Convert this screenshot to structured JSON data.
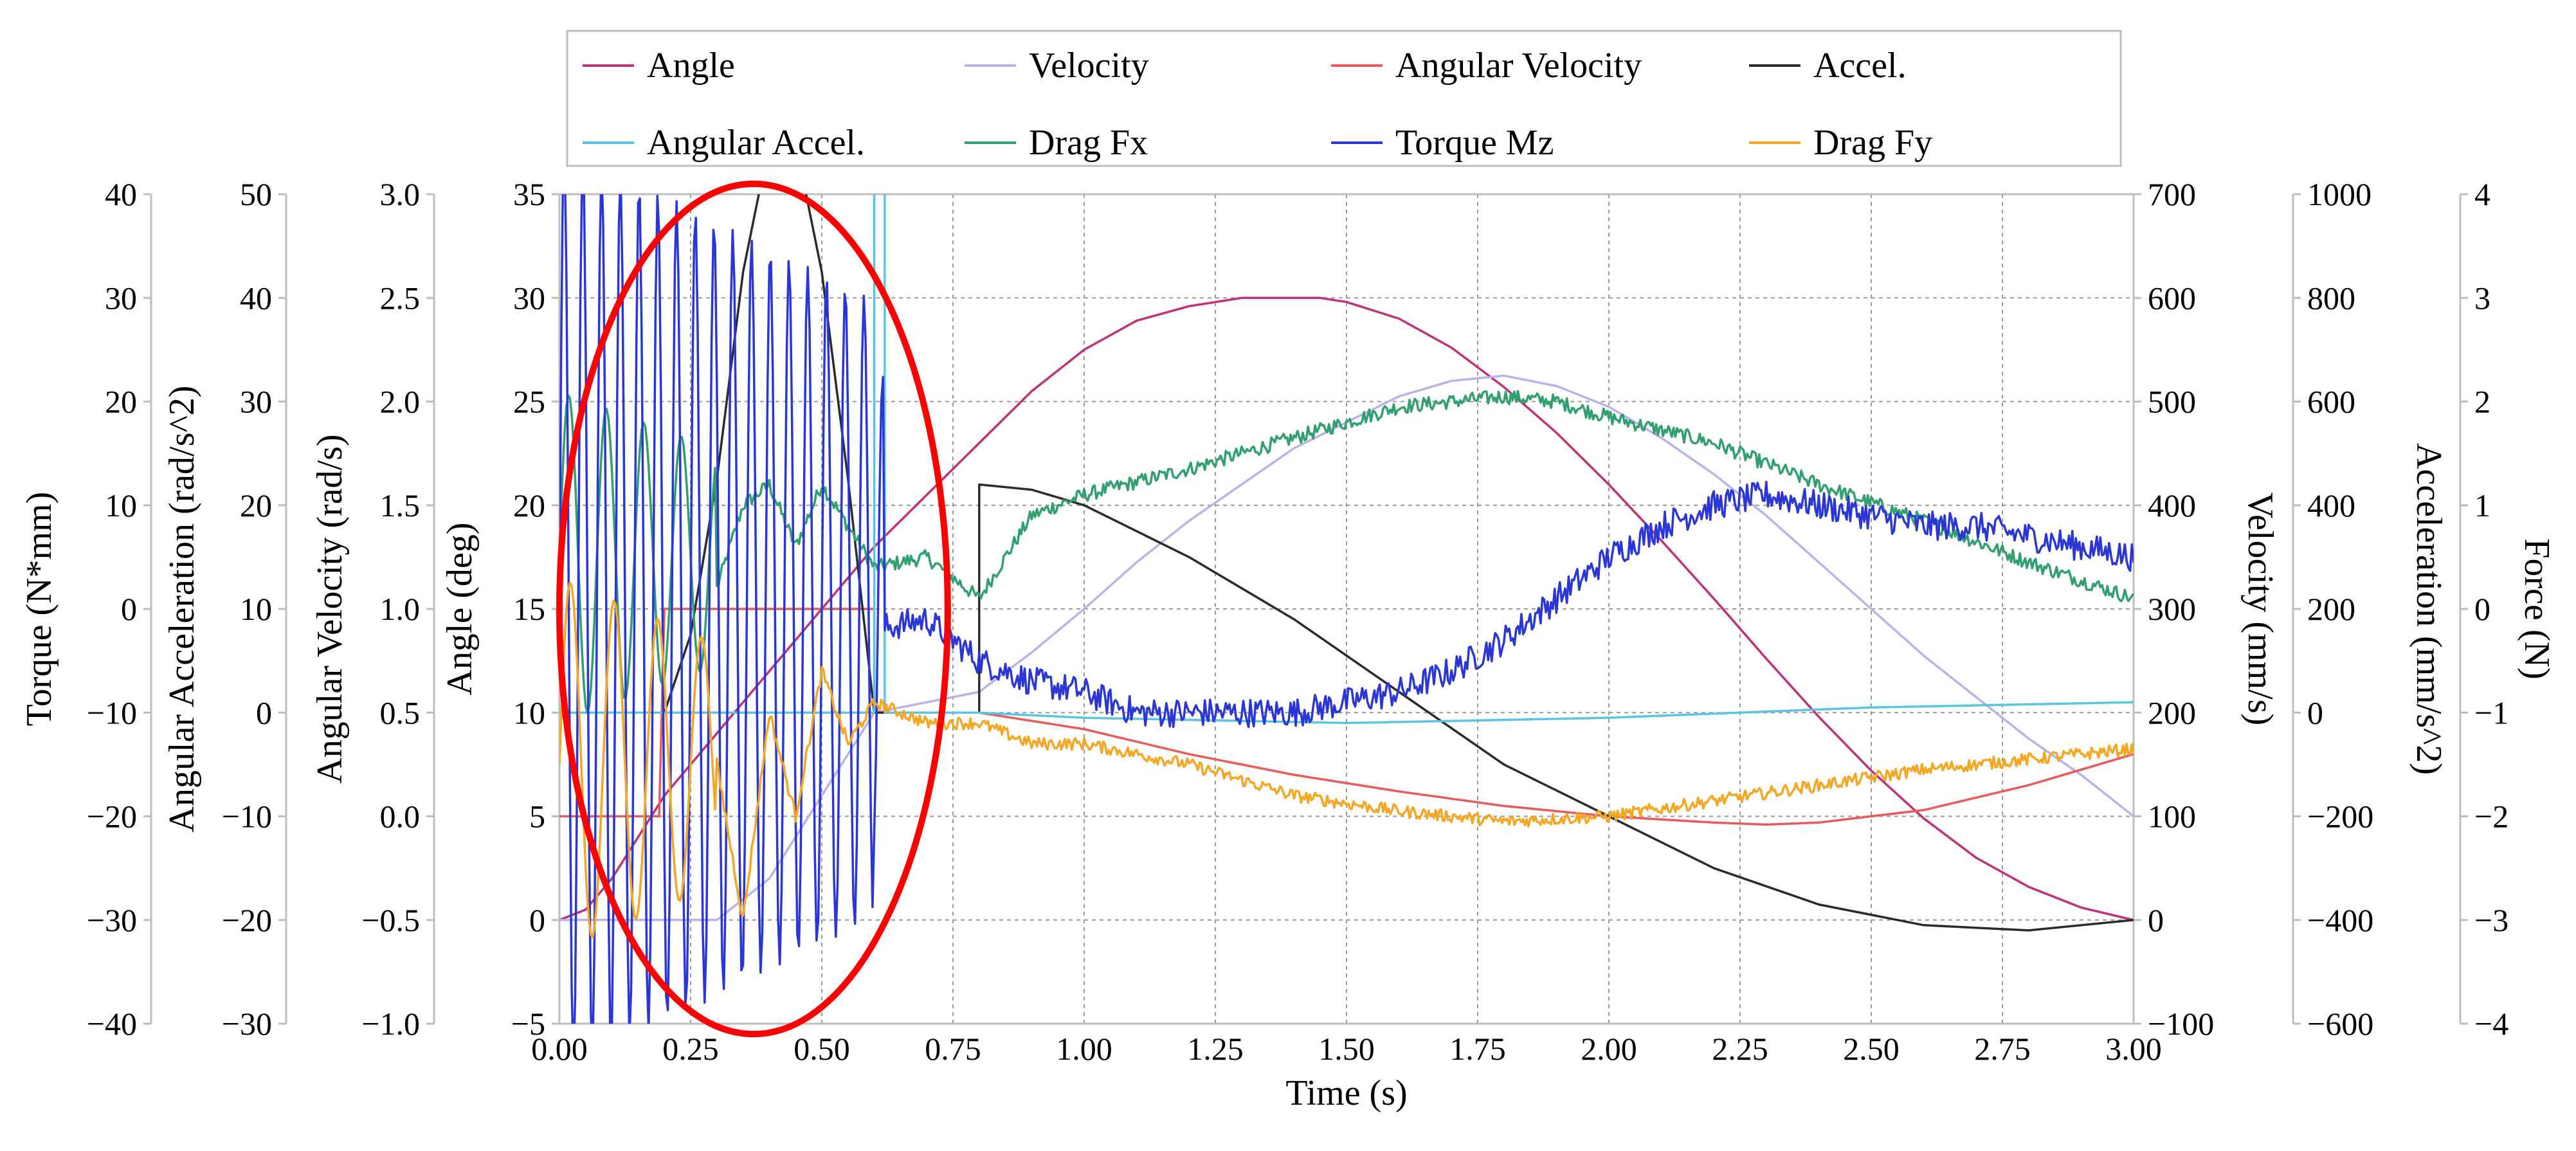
{
  "chart_data": {
    "type": "line",
    "xlabel": "Time (s)",
    "xlim": [
      0,
      3.0
    ],
    "xticks": [
      "0.00",
      "0.25",
      "0.50",
      "0.75",
      "1.00",
      "1.25",
      "1.50",
      "1.75",
      "2.00",
      "2.25",
      "2.50",
      "2.75",
      "3.00"
    ],
    "axes": {
      "torque": {
        "label": "Torque (N*mm)",
        "lim": [
          -40,
          40
        ],
        "ticks": [
          "40",
          "30",
          "20",
          "10",
          "0",
          "−10",
          "−20",
          "−30",
          "−40"
        ]
      },
      "angular_acceleration": {
        "label": "Angular Acceleration (rad/s^2)",
        "lim": [
          -30,
          50
        ],
        "ticks": [
          "50",
          "40",
          "30",
          "20",
          "10",
          "0",
          "−10",
          "−20",
          "−30"
        ]
      },
      "angular_velocity": {
        "label": "Angular Velocity (rad/s)",
        "lim": [
          -1.0,
          3.0
        ],
        "ticks": [
          "3.0",
          "2.5",
          "2.0",
          "1.5",
          "1.0",
          "0.5",
          "0.0",
          "−0.5",
          "−1.0"
        ]
      },
      "angle": {
        "label": "Angle (deg)",
        "lim": [
          -5,
          35
        ],
        "ticks": [
          "35",
          "30",
          "25",
          "20",
          "15",
          "10",
          "5",
          "0",
          "−5"
        ]
      },
      "velocity": {
        "label": "Velocity (mm/s)",
        "lim": [
          -100,
          700
        ],
        "ticks": [
          "700",
          "600",
          "500",
          "400",
          "300",
          "200",
          "100",
          "0",
          "−100"
        ]
      },
      "acceleration": {
        "label": "Acceleration (mm/s^2)",
        "lim": [
          -600,
          1000
        ],
        "ticks": [
          "1000",
          "800",
          "600",
          "400",
          "200",
          "0",
          "−200",
          "−400",
          "−600"
        ]
      },
      "force": {
        "label": "Force (N)",
        "lim": [
          -4,
          4
        ],
        "ticks": [
          "4",
          "3",
          "2",
          "1",
          "0",
          "−1",
          "−2",
          "−3",
          "−4"
        ]
      }
    },
    "legend": [
      "Angle",
      "Velocity",
      "Angular Velocity",
      "Accel.",
      "Angular Accel.",
      "Drag Fx",
      "Torque Mz",
      "Drag Fy"
    ],
    "series": [
      {
        "name": "Angle",
        "axis": "angle",
        "color": "#c2307a",
        "x": [
          0,
          0.05,
          0.1,
          0.15,
          0.2,
          0.3,
          0.4,
          0.5,
          0.6,
          0.7,
          0.8,
          0.9,
          1.0,
          1.1,
          1.2,
          1.3,
          1.4,
          1.45,
          1.5,
          1.6,
          1.7,
          1.8,
          1.9,
          2.0,
          2.1,
          2.2,
          2.3,
          2.4,
          2.5,
          2.6,
          2.7,
          2.8,
          2.9,
          3.0
        ],
        "y": [
          0,
          0.5,
          2.0,
          4.0,
          6.0,
          9.0,
          12.0,
          15.0,
          18.0,
          20.5,
          23.0,
          25.5,
          27.5,
          28.9,
          29.6,
          30.0,
          30.0,
          30.0,
          29.8,
          29.0,
          27.6,
          25.7,
          23.5,
          21.0,
          18.3,
          15.5,
          12.6,
          9.8,
          7.2,
          4.9,
          3.0,
          1.6,
          0.6,
          0.0
        ]
      },
      {
        "name": "Velocity",
        "axis": "velocity",
        "color": "#b8b2ee",
        "x": [
          0,
          0.3,
          0.4,
          0.5,
          0.6,
          0.8,
          0.9,
          1.0,
          1.1,
          1.2,
          1.3,
          1.4,
          1.5,
          1.6,
          1.7,
          1.8,
          1.9,
          2.0,
          2.1,
          2.2,
          2.3,
          2.4,
          2.5,
          2.6,
          2.7,
          2.8,
          2.9,
          3.0
        ],
        "y": [
          0,
          0,
          40,
          120,
          200,
          220,
          258,
          300,
          345,
          385,
          420,
          455,
          480,
          505,
          520,
          525,
          515,
          495,
          465,
          430,
          390,
          345,
          300,
          255,
          215,
          175,
          140,
          100
        ]
      },
      {
        "name": "Angular Velocity",
        "axis": "angular_velocity",
        "color": "#ea5a5a",
        "x": [
          0,
          0.19,
          0.2,
          0.6,
          0.6,
          0.8,
          1.0,
          1.2,
          1.4,
          1.6,
          1.8,
          2.0,
          2.2,
          2.3,
          2.4,
          2.6,
          2.8,
          3.0
        ],
        "y": [
          0,
          0,
          1.0,
          1.0,
          0.5,
          0.5,
          0.42,
          0.3,
          0.2,
          0.12,
          0.05,
          0.0,
          -0.03,
          -0.04,
          -0.03,
          0.03,
          0.15,
          0.3
        ]
      },
      {
        "name": "Accel.",
        "axis": "acceleration",
        "color": "#2b2b2b",
        "x": [
          0,
          0.2,
          0.25,
          0.3,
          0.35,
          0.4,
          0.45,
          0.5,
          0.55,
          0.6,
          0.6,
          0.8,
          0.8,
          0.9,
          1.0,
          1.2,
          1.4,
          1.6,
          1.8,
          2.0,
          2.2,
          2.4,
          2.6,
          2.8,
          3.0
        ],
        "y": [
          0,
          0,
          150,
          450,
          850,
          1100,
          1100,
          850,
          450,
          0,
          0,
          0,
          440,
          430,
          400,
          300,
          180,
          40,
          -100,
          -200,
          -300,
          -370,
          -410,
          -420,
          -400
        ]
      },
      {
        "name": "Angular Accel.",
        "axis": "angular_acceleration",
        "color": "#5bc3e6",
        "x": [
          0,
          0.6,
          0.6,
          0.62,
          0.62,
          0.8,
          1.0,
          1.5,
          2.0,
          2.5,
          3.0
        ],
        "y": [
          0,
          0,
          60,
          60,
          0,
          0,
          -0.5,
          -1.0,
          -0.5,
          0.5,
          1.0
        ]
      },
      {
        "name": "Drag Fx",
        "axis": "force",
        "color": "#30a070",
        "x": [
          0.3,
          0.35,
          0.4,
          0.45,
          0.5,
          0.55,
          0.6,
          0.7,
          0.8,
          0.9,
          1.0,
          1.2,
          1.4,
          1.6,
          1.8,
          1.9,
          2.0,
          2.2,
          2.4,
          2.6,
          2.8,
          3.0
        ],
        "y": [
          0.2,
          1.0,
          1.2,
          0.6,
          1.2,
          0.8,
          0.4,
          0.5,
          0.1,
          0.9,
          1.1,
          1.35,
          1.65,
          1.95,
          2.05,
          2.0,
          1.85,
          1.6,
          1.2,
          0.85,
          0.45,
          0.1
        ]
      },
      {
        "name": "Torque Mz",
        "axis": "torque",
        "color": "#2a36d6",
        "x": [
          0.6,
          0.7,
          0.8,
          0.9,
          1.0,
          1.1,
          1.2,
          1.3,
          1.4,
          1.5,
          1.6,
          1.7,
          1.8,
          1.9,
          2.0,
          2.1,
          2.2,
          2.3,
          2.4,
          2.5,
          2.6,
          2.7,
          2.8,
          2.9,
          3.0
        ],
        "y": [
          -2,
          -1,
          -5,
          -7,
          -8,
          -10,
          -10,
          -10,
          -10,
          -9,
          -8,
          -6,
          -3,
          1,
          5,
          8,
          10,
          11,
          10,
          9,
          8,
          8,
          7,
          6,
          5
        ]
      },
      {
        "name": "Drag Fy",
        "axis": "force",
        "color": "#f5a623",
        "x": [
          0.3,
          0.35,
          0.4,
          0.45,
          0.5,
          0.55,
          0.6,
          0.7,
          0.8,
          0.9,
          1.0,
          1.2,
          1.4,
          1.6,
          1.8,
          2.0,
          2.2,
          2.4,
          2.6,
          2.8,
          3.0
        ],
        "y": [
          -1.5,
          -3.0,
          -1.0,
          -2.0,
          -0.6,
          -1.3,
          -0.9,
          -1.1,
          -1.1,
          -1.3,
          -1.3,
          -1.5,
          -1.8,
          -1.95,
          -2.05,
          -2.0,
          -1.85,
          -1.7,
          -1.55,
          -1.45,
          -1.35
        ]
      }
    ],
    "annotations": [
      {
        "type": "ellipse",
        "color": "#ff0000",
        "x_center": 0.37,
        "x_half_width": 0.37,
        "y_axis": "angle",
        "y_center": 15,
        "y_half_height": 20.5
      }
    ]
  }
}
